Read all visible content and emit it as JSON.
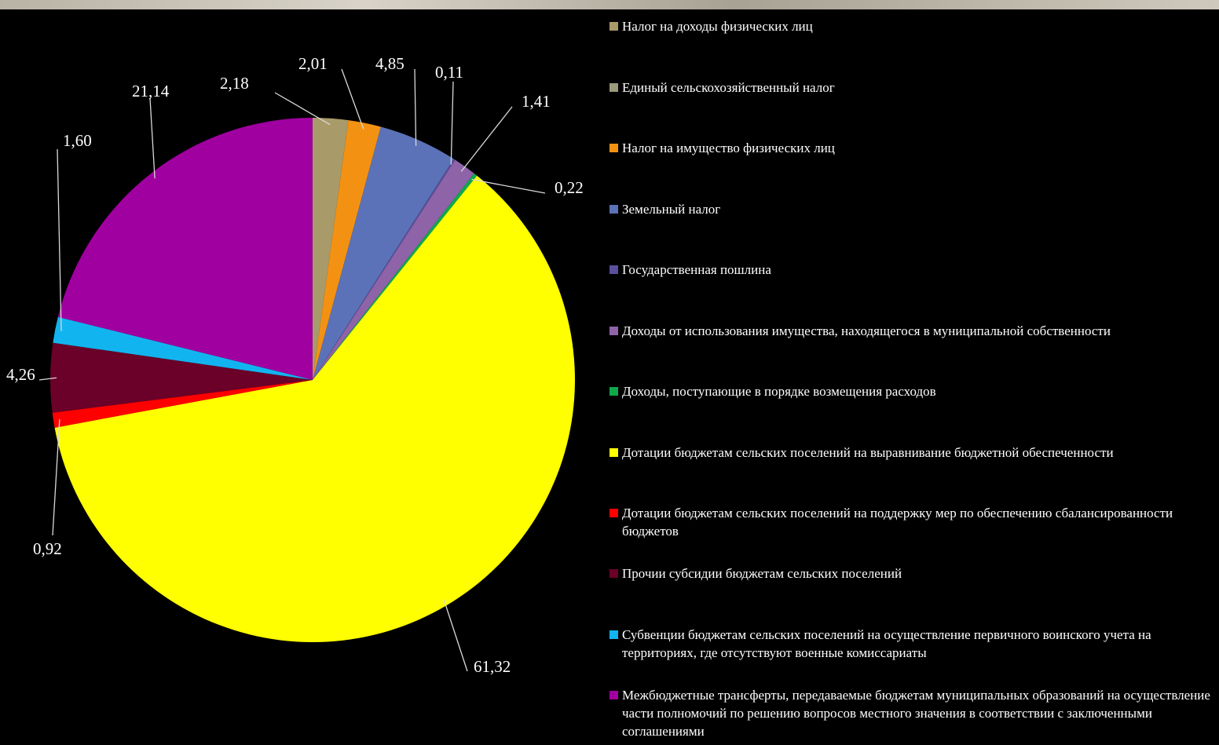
{
  "chart_data": {
    "type": "pie",
    "title": "",
    "legend_position": "right",
    "slices": [
      {
        "name": "Налог на доходы физических лиц",
        "value": 2.18,
        "label": "2,18",
        "color": "#a99a6a"
      },
      {
        "name": "Единый сельскохозяйственный налог",
        "value": 0.0,
        "label": "",
        "color": "#9a9a7c"
      },
      {
        "name": "Налог на имущество физических лиц",
        "value": 2.01,
        "label": "2,01",
        "color": "#f39212"
      },
      {
        "name": "Земельный налог",
        "value": 4.85,
        "label": "4,85",
        "color": "#5b72b8"
      },
      {
        "name": "Государственная пошлина",
        "value": 0.11,
        "label": "0,11",
        "color": "#5a4f9c"
      },
      {
        "name": "Доходы от использования имущества, находящегося в муниципальной собственности",
        "value": 1.41,
        "label": "1,41",
        "color": "#8e63a8"
      },
      {
        "name": "Доходы, поступающие в порядке возмещения расходов",
        "value": 0.22,
        "label": "0,22",
        "color": "#0fa84b"
      },
      {
        "name": "Дотации бюджетам сельских поселений на выравнивание бюджетной обеспеченности",
        "value": 61.32,
        "label": "61,32",
        "color": "#ffff00"
      },
      {
        "name": "Дотации бюджетам сельских поселений на поддержку мер по обеспечению сбалансированности бюджетов",
        "value": 0.92,
        "label": "0,92",
        "color": "#ff0000"
      },
      {
        "name": "Прочии субсидии бюджетам сельских поселений",
        "value": 4.26,
        "label": "4,26",
        "color": "#6b0028"
      },
      {
        "name": "Субвенции бюджетам сельских поселений на осуществление первичного воинского учета на территориях, где отсутствуют военные комиссариаты",
        "value": 1.6,
        "label": "1,60",
        "color": "#12b4f0"
      },
      {
        "name": "Межбюджетные трансферты, передаваемые бюджетам муниципальных образований на осуществление части полномочий по решению вопросов местного значения в соответствии с заключенными соглашениями",
        "value": 21.14,
        "label": "21,14",
        "color": "#a000a0"
      }
    ]
  }
}
